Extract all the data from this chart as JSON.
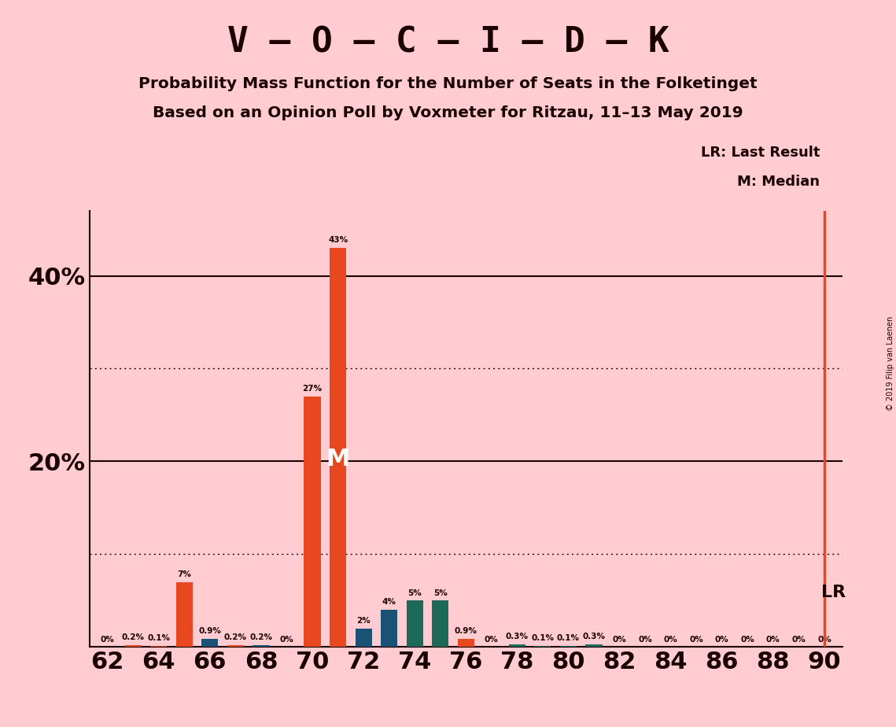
{
  "title": "V – O – C – I – D – K",
  "subtitle1": "Probability Mass Function for the Number of Seats in the Folketinget",
  "subtitle2": "Based on an Opinion Poll by Voxmeter for Ritzau, 11–13 May 2019",
  "copyright": "© 2019 Filip van Laenen",
  "background_color": "#FFCCD2",
  "seats": [
    62,
    63,
    64,
    65,
    66,
    67,
    68,
    69,
    70,
    71,
    72,
    73,
    74,
    75,
    76,
    77,
    78,
    79,
    80,
    81,
    82,
    83,
    84,
    85,
    86,
    87,
    88,
    89,
    90
  ],
  "values": [
    0.0,
    0.2,
    0.1,
    7.0,
    0.9,
    0.2,
    0.2,
    0.0,
    27.0,
    43.0,
    2.0,
    4.0,
    5.0,
    5.0,
    0.9,
    0.0,
    0.3,
    0.1,
    0.1,
    0.3,
    0.0,
    0.0,
    0.0,
    0.0,
    0.0,
    0.0,
    0.0,
    0.0,
    0.0
  ],
  "bar_colors_by_seat": {
    "62": "#E84820",
    "63": "#E84820",
    "64": "#E84820",
    "65": "#E84820",
    "66": "#1A5276",
    "67": "#E84820",
    "68": "#1A5276",
    "69": "#1A5276",
    "70": "#E84820",
    "71": "#E84820",
    "72": "#1A5276",
    "73": "#1A5276",
    "74": "#1D6A5A",
    "75": "#1D6A5A",
    "76": "#E84820",
    "77": "#1D6A5A",
    "78": "#1D6A5A",
    "79": "#1D6A5A",
    "80": "#1D6A5A",
    "81": "#1D6A5A",
    "82": "#E84820",
    "83": "#E84820",
    "84": "#E84820",
    "85": "#E84820",
    "86": "#E84820",
    "87": "#E84820",
    "88": "#E84820",
    "89": "#E84820",
    "90": "#E84820"
  },
  "median_seat": 71,
  "lr_seat": 90,
  "lr_label": "LR",
  "median_label": "M",
  "lr_legend": "LR: Last Result",
  "median_legend": "M: Median",
  "ytick_labels": [
    "20%",
    "40%"
  ],
  "ytick_values": [
    20,
    40
  ],
  "ylim": [
    0,
    47
  ],
  "dotted_lines": [
    10,
    30
  ],
  "solid_lines": [
    20,
    40
  ],
  "title_color": "#1a0000",
  "lr_line_color": "#E84820",
  "median_color": "#FFFFFF",
  "bar_width": 0.65
}
